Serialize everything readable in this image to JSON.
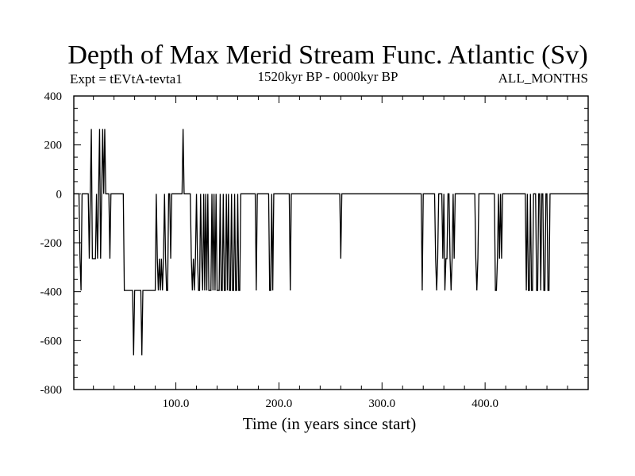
{
  "chart_data": {
    "type": "line",
    "title": "Depth of Max Merid Stream Func. Atlantic (Sv)",
    "subtitle_left": "Expt = tEVtA-tevta1",
    "subtitle_center": "1520kyr BP - 0000kyr BP",
    "subtitle_right": "ALL_MONTHS",
    "xlabel": "Time (in years since start)",
    "ylabel": "",
    "xlim": [
      1,
      500
    ],
    "ylim": [
      -800,
      400
    ],
    "x_ticks": [
      100,
      200,
      300,
      400
    ],
    "x_tick_labels": [
      "100.0",
      "200.0",
      "300.0",
      "400.0"
    ],
    "y_ticks": [
      400,
      200,
      0,
      -200,
      -400,
      -600,
      -800
    ],
    "y_tick_labels": [
      "400",
      "200",
      "0",
      "-200",
      "-400",
      "-600",
      "-800"
    ],
    "grid": false,
    "series": [
      {
        "name": "",
        "color": "#000000",
        "x_start": 1,
        "x_step": 1,
        "values": [
          0,
          0,
          0,
          0,
          0,
          0,
          -265,
          -395,
          0,
          0,
          0,
          0,
          0,
          0,
          0,
          -265,
          0,
          265,
          -265,
          -265,
          -265,
          -265,
          0,
          -265,
          0,
          265,
          -265,
          0,
          265,
          0,
          265,
          0,
          0,
          0,
          0,
          -265,
          0,
          0,
          0,
          0,
          0,
          0,
          0,
          0,
          0,
          0,
          0,
          0,
          0,
          -395,
          -395,
          -395,
          -395,
          -395,
          -395,
          -395,
          -395,
          -395,
          -660,
          -395,
          -395,
          -395,
          -395,
          -395,
          -395,
          -395,
          -660,
          -395,
          -395,
          -395,
          -395,
          -395,
          -395,
          -395,
          -395,
          -395,
          -395,
          -395,
          -395,
          -395,
          0,
          -265,
          -395,
          -265,
          -395,
          -265,
          -395,
          -265,
          0,
          -265,
          -395,
          -395,
          0,
          0,
          -265,
          0,
          0,
          0,
          0,
          0,
          0,
          0,
          0,
          0,
          0,
          0,
          265,
          0,
          0,
          0,
          0,
          0,
          0,
          0,
          -265,
          -395,
          -265,
          -395,
          -265,
          0,
          -265,
          -395,
          -395,
          0,
          -265,
          -395,
          0,
          -395,
          0,
          -395,
          0,
          -395,
          -395,
          -395,
          0,
          -395,
          0,
          -395,
          0,
          -395,
          -395,
          -395,
          0,
          -395,
          -395,
          0,
          -395,
          -395,
          0,
          -395,
          0,
          -395,
          -395,
          0,
          -395,
          -395,
          0,
          -395,
          -395,
          0,
          -395,
          -395,
          0,
          0,
          0,
          0,
          0,
          0,
          0,
          0,
          0,
          0,
          0,
          0,
          0,
          0,
          0,
          -395,
          0,
          0,
          0,
          0,
          0,
          0,
          0,
          0,
          0,
          0,
          0,
          0,
          -395,
          -395,
          0,
          -395,
          0,
          0,
          0,
          0,
          0,
          0,
          0,
          0,
          0,
          0,
          0,
          0,
          0,
          0,
          0,
          0,
          -395,
          0,
          0,
          0,
          0,
          0,
          0,
          0,
          0,
          0,
          0,
          0,
          0,
          0,
          0,
          0,
          0,
          0,
          0,
          0,
          0,
          0,
          0,
          0,
          0,
          0,
          0,
          0,
          0,
          0,
          0,
          0,
          0,
          0,
          0,
          0,
          0,
          0,
          0,
          0,
          0,
          0,
          0,
          0,
          0,
          0,
          0,
          0,
          0,
          -265,
          0,
          0,
          0,
          0,
          0,
          0,
          0,
          0,
          0,
          0,
          0,
          0,
          0,
          0,
          0,
          0,
          0,
          0,
          0,
          0,
          0,
          0,
          0,
          0,
          0,
          0,
          0,
          0,
          0,
          0,
          0,
          0,
          0,
          0,
          0,
          0,
          0,
          0,
          0,
          0,
          0,
          0,
          0,
          0,
          0,
          0,
          0,
          0,
          0,
          0,
          0,
          0,
          0,
          0,
          0,
          0,
          0,
          0,
          0,
          0,
          0,
          0,
          0,
          0,
          0,
          0,
          0,
          0,
          0,
          0,
          0,
          0,
          0,
          0,
          0,
          0,
          0,
          0,
          -395,
          0,
          0,
          0,
          0,
          0,
          0,
          0,
          0,
          0,
          0,
          0,
          0,
          -265,
          -395,
          -265,
          0,
          0,
          0,
          0,
          -265,
          0,
          -395,
          -265,
          -265,
          0,
          0,
          -265,
          -395,
          -265,
          0,
          -265,
          0,
          0,
          0,
          0,
          0,
          0,
          0,
          0,
          0,
          0,
          0,
          0,
          0,
          0,
          0,
          0,
          0,
          0,
          0,
          0,
          -265,
          -395,
          -265,
          0,
          0,
          0,
          0,
          0,
          0,
          0,
          0,
          0,
          0,
          0,
          0,
          0,
          0,
          0,
          0,
          -395,
          -395,
          -265,
          0,
          -265,
          0,
          -265,
          0,
          0,
          0,
          0,
          0,
          0,
          0,
          0,
          0,
          0,
          0,
          0,
          0,
          0,
          0,
          0,
          0,
          0,
          0,
          0,
          0,
          0,
          0,
          -395,
          0,
          -395,
          -395,
          0,
          -395,
          -395,
          0,
          0,
          0,
          -395,
          -395,
          0,
          0,
          -395,
          0,
          0,
          -395,
          -395,
          0,
          0,
          -395,
          -395,
          0,
          0,
          0,
          0,
          0,
          0,
          0,
          0,
          0,
          0,
          0,
          0,
          0,
          0,
          0,
          0,
          0,
          0,
          0,
          0,
          0,
          0,
          0,
          0,
          0,
          0,
          0,
          0,
          0,
          0,
          0,
          0,
          0,
          0,
          0,
          0,
          0,
          0
        ]
      }
    ]
  }
}
